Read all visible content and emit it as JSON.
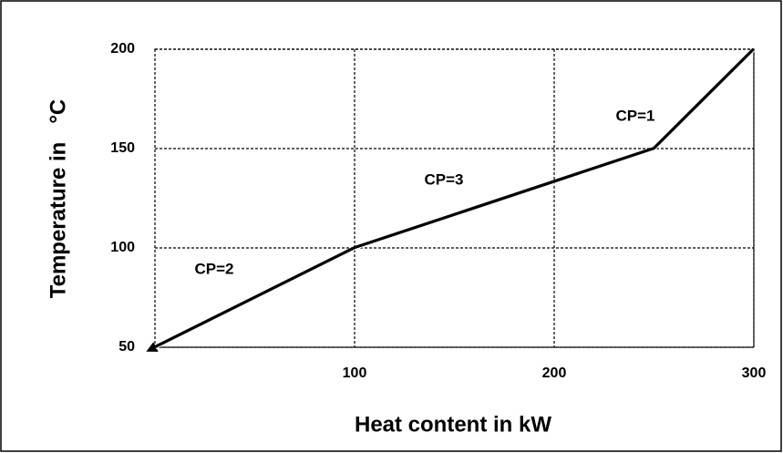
{
  "chart_data": {
    "type": "line",
    "xlabel": "Heat content in kW",
    "ylabel": "Temperature in   °C",
    "x": [
      0,
      100,
      250,
      300
    ],
    "series": [
      {
        "color": "#000000",
        "values": [
          50,
          100,
          150,
          200
        ]
      }
    ],
    "xlim": [
      0,
      300
    ],
    "xticks": [
      100,
      200,
      300
    ],
    "ylim": [
      50,
      200
    ],
    "yticks": [
      50,
      100,
      150,
      200
    ],
    "grid": true,
    "annotations": [
      "CP=2",
      "CP=3",
      "CP=1"
    ]
  }
}
